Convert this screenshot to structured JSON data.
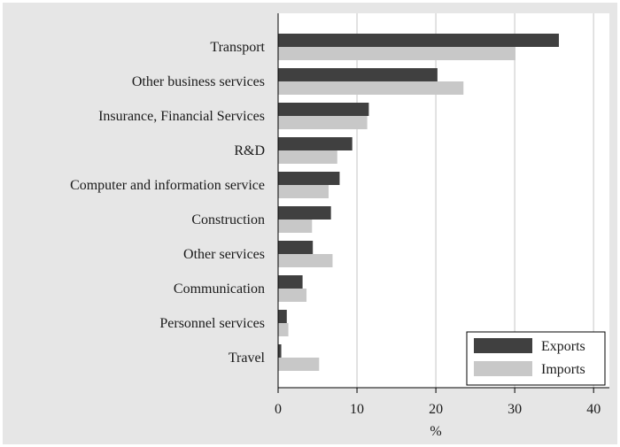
{
  "chart_data": {
    "type": "bar",
    "orientation": "horizontal",
    "categories": [
      "Transport",
      "Other business services",
      "Insurance, Financial Services",
      "R&D",
      "Computer and information service",
      "Construction",
      "Other services",
      "Communication",
      "Personnel services",
      "Travel"
    ],
    "series": [
      {
        "name": "Exports",
        "color": "#404040",
        "values": [
          35.6,
          20.2,
          11.5,
          9.4,
          7.8,
          6.7,
          4.4,
          3.1,
          1.1,
          0.4
        ]
      },
      {
        "name": "Imports",
        "color": "#c8c8c8",
        "values": [
          30.1,
          23.5,
          11.3,
          7.5,
          6.4,
          4.3,
          6.9,
          3.6,
          1.3,
          5.2
        ]
      }
    ],
    "xlabel": "%",
    "ylabel": "",
    "xlim": [
      0,
      42
    ],
    "xticks": [
      0,
      10,
      20,
      30,
      40
    ],
    "grid": true,
    "legend": "bottom-right"
  }
}
